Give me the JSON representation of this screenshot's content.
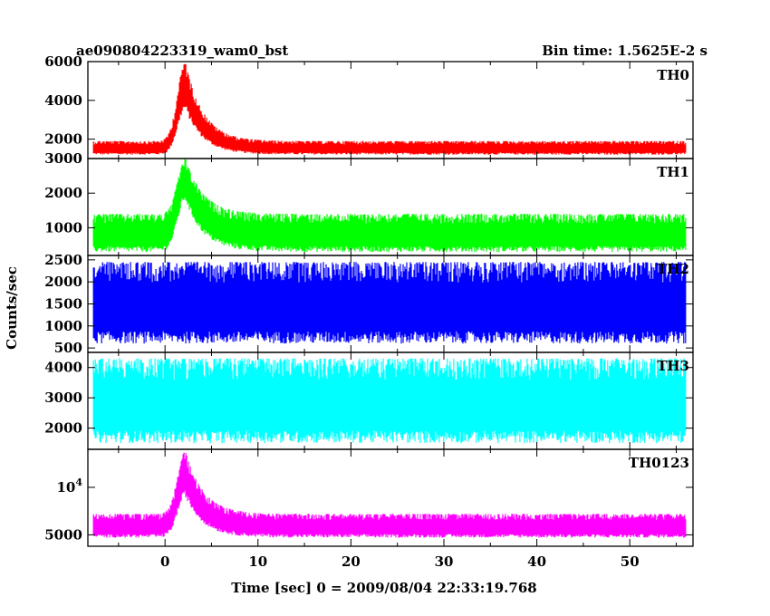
{
  "chart_data": {
    "type": "line",
    "title_left": "ae090804223319_wam0_bst",
    "title_right": "Bin time: 1.5625E-2 s",
    "xlabel": "Time [sec] 0 = 2009/08/04 22:33:19.768",
    "ylabel": "Counts/sec",
    "xlim": [
      -8.3,
      56.8
    ],
    "x_ticks": [
      "0",
      "10",
      "20",
      "30",
      "40",
      "50"
    ],
    "x_tick_values": [
      0,
      10,
      20,
      30,
      40,
      50
    ],
    "data_x_range": [
      -7.7,
      56.0
    ],
    "panels": [
      {
        "name": "TH0",
        "color": "#ff0000",
        "ylim": [
          1000,
          6000
        ],
        "y_ticks": [
          {
            "value": 2000,
            "label": "2000"
          },
          {
            "value": 4000,
            "label": "4000"
          },
          {
            "value": 6000,
            "label": "6000"
          }
        ],
        "baseline_low": 1200,
        "baseline_high": 1900,
        "burst_peak_time": 2.2,
        "burst_peak_low": 3500,
        "burst_peak_high": 6000
      },
      {
        "name": "TH1",
        "color": "#00ff00",
        "ylim": [
          200,
          3000
        ],
        "y_ticks": [
          {
            "value": 1000,
            "label": "1000"
          },
          {
            "value": 2000,
            "label": "2000"
          },
          {
            "value": 3000,
            "label": "3000"
          }
        ],
        "baseline_low": 300,
        "baseline_high": 1400,
        "burst_peak_time": 2.2,
        "burst_peak_low": 1800,
        "burst_peak_high": 3000
      },
      {
        "name": "TH2",
        "color": "#0000ff",
        "ylim": [
          400,
          2600
        ],
        "y_ticks": [
          {
            "value": 500,
            "label": "500"
          },
          {
            "value": 1000,
            "label": "1000"
          },
          {
            "value": 1500,
            "label": "1500"
          },
          {
            "value": 2000,
            "label": "2000"
          },
          {
            "value": 2500,
            "label": "2500"
          }
        ],
        "baseline_low": 600,
        "baseline_high": 2450,
        "burst_peak_time": 2.2,
        "burst_peak_low": 600,
        "burst_peak_high": 2450
      },
      {
        "name": "TH3",
        "color": "#00ffff",
        "ylim": [
          1300,
          4500
        ],
        "y_ticks": [
          {
            "value": 2000,
            "label": "2000"
          },
          {
            "value": 3000,
            "label": "3000"
          },
          {
            "value": 4000,
            "label": "4000"
          }
        ],
        "baseline_low": 1500,
        "baseline_high": 4300,
        "burst_peak_time": 2.2,
        "burst_peak_low": 1500,
        "burst_peak_high": 4300
      },
      {
        "name": "TH0123",
        "color": "#ff00ff",
        "ylim": [
          3800,
          14000
        ],
        "y_ticks": [
          {
            "value": 5000,
            "label": "5000"
          },
          {
            "value": 10000,
            "label": "10^4"
          }
        ],
        "baseline_low": 4700,
        "baseline_high": 7200,
        "burst_peak_time": 2.2,
        "burst_peak_low": 9000,
        "burst_peak_high": 13800
      }
    ]
  }
}
